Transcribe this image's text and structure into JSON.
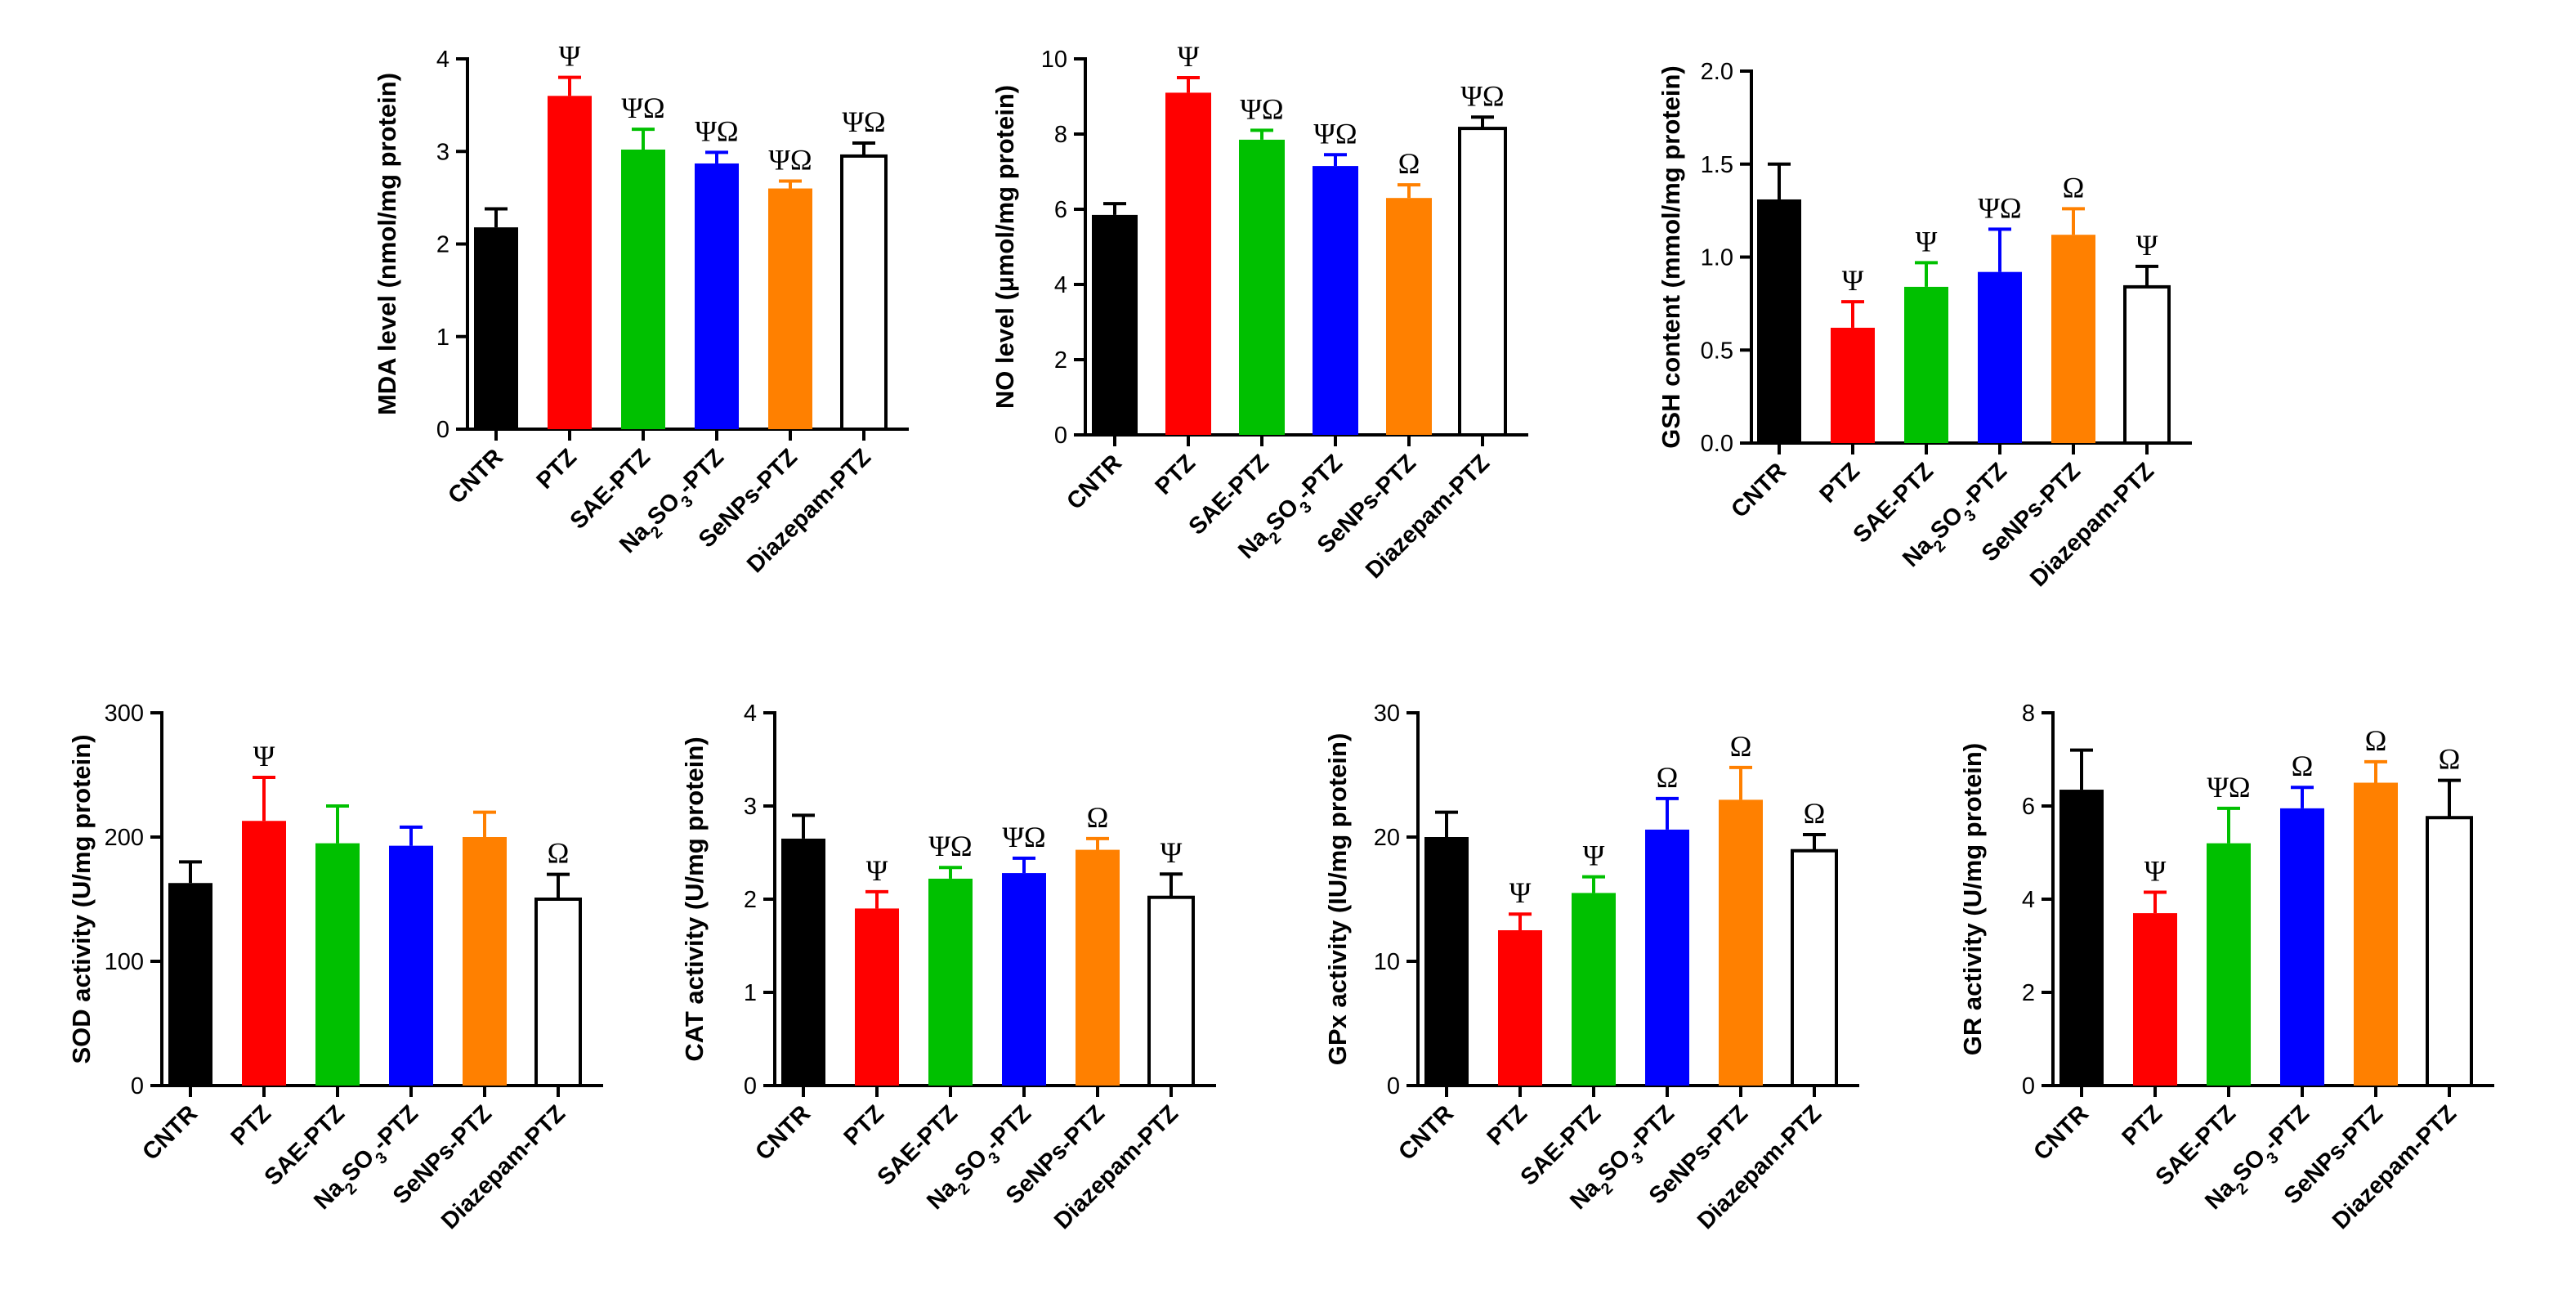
{
  "colors": {
    "CNTR": "#000000",
    "PTZ": "#ff0000",
    "SAE-PTZ": "#00c000",
    "Na2SO3-PTZ": "#0000ff",
    "SeNPs-PTZ": "#ff8000",
    "Diazepam-PTZ": "#ffffff"
  },
  "chart_data": [
    {
      "type": "bar",
      "categories": [
        "CNTR",
        "PTZ",
        "SAE-PTZ",
        "Na2SO3-PTZ",
        "SeNPs-PTZ",
        "Diazepam-PTZ"
      ],
      "category_labels": [
        {
          "text": "CNTR"
        },
        {
          "text": "PTZ"
        },
        {
          "text": "SAE-PTZ"
        },
        {
          "text": "Na",
          "sub": "2",
          "text2": "SO",
          "sub2": "3",
          "text3": "-PTZ"
        },
        {
          "text": "SeNPs-PTZ"
        },
        {
          "text": "Diazepam-PTZ"
        }
      ],
      "ylabel": "MDA level (nmol/mg protein)",
      "ylim": [
        0,
        4
      ],
      "yticks": [
        0,
        1,
        2,
        3,
        4
      ],
      "ytick_labels": [
        "0",
        "1",
        "2",
        "3",
        "4"
      ],
      "values": [
        2.18,
        3.6,
        3.02,
        2.87,
        2.6,
        2.95
      ],
      "errors": [
        0.2,
        0.2,
        0.22,
        0.12,
        0.08,
        0.14
      ],
      "significance": [
        "",
        "Ψ",
        "ΨΩ",
        "ΨΩ",
        "ΨΩ",
        "ΨΩ"
      ]
    },
    {
      "type": "bar",
      "categories": [
        "CNTR",
        "PTZ",
        "SAE-PTZ",
        "Na2SO3-PTZ",
        "SeNPs-PTZ",
        "Diazepam-PTZ"
      ],
      "category_labels": [
        {
          "text": "CNTR"
        },
        {
          "text": "PTZ"
        },
        {
          "text": "SAE-PTZ"
        },
        {
          "text": "Na",
          "sub": "2",
          "text2": "SO",
          "sub2": "3",
          "text3": "-PTZ"
        },
        {
          "text": "SeNPs-PTZ"
        },
        {
          "text": "Diazepam-PTZ"
        }
      ],
      "ylabel": "NO level (μmol/mg protein)",
      "ylim": [
        0,
        10
      ],
      "yticks": [
        0,
        2,
        4,
        6,
        8,
        10
      ],
      "ytick_labels": [
        "0",
        "2",
        "4",
        "6",
        "8",
        "10"
      ],
      "values": [
        5.85,
        9.1,
        7.85,
        7.15,
        6.3,
        8.15
      ],
      "errors": [
        0.3,
        0.4,
        0.25,
        0.3,
        0.35,
        0.3
      ],
      "significance": [
        "",
        "Ψ",
        "ΨΩ",
        "ΨΩ",
        "Ω",
        "ΨΩ"
      ]
    },
    {
      "type": "bar",
      "categories": [
        "CNTR",
        "PTZ",
        "SAE-PTZ",
        "Na2SO3-PTZ",
        "SeNPs-PTZ",
        "Diazepam-PTZ"
      ],
      "category_labels": [
        {
          "text": "CNTR"
        },
        {
          "text": "PTZ"
        },
        {
          "text": "SAE-PTZ"
        },
        {
          "text": "Na",
          "sub": "2",
          "text2": "SO",
          "sub2": "3",
          "text3": "-PTZ"
        },
        {
          "text": "SeNPs-PTZ"
        },
        {
          "text": "Diazepam-PTZ"
        }
      ],
      "ylabel": "GSH content (mmol/mg protein)",
      "ylim": [
        0,
        2
      ],
      "yticks": [
        0,
        0.5,
        1,
        1.5,
        2
      ],
      "ytick_labels": [
        "0.0",
        "0.5",
        "1.0",
        "1.5",
        "2.0"
      ],
      "values": [
        1.31,
        0.62,
        0.84,
        0.92,
        1.12,
        0.84
      ],
      "errors": [
        0.19,
        0.14,
        0.13,
        0.23,
        0.14,
        0.11
      ],
      "significance": [
        "",
        "Ψ",
        "Ψ",
        "ΨΩ",
        "Ω",
        "Ψ"
      ]
    },
    {
      "type": "bar",
      "categories": [
        "CNTR",
        "PTZ",
        "SAE-PTZ",
        "Na2SO3-PTZ",
        "SeNPs-PTZ",
        "Diazepam-PTZ"
      ],
      "category_labels": [
        {
          "text": "CNTR"
        },
        {
          "text": "PTZ"
        },
        {
          "text": "SAE-PTZ"
        },
        {
          "text": "Na",
          "sub": "2",
          "text2": "SO",
          "sub2": "3",
          "text3": "-PTZ"
        },
        {
          "text": "SeNPs-PTZ"
        },
        {
          "text": "Diazepam-PTZ"
        }
      ],
      "ylabel": "SOD activity (U/mg protein)",
      "ylim": [
        0,
        300
      ],
      "yticks": [
        0,
        100,
        200,
        300
      ],
      "ytick_labels": [
        "0",
        "100",
        "200",
        "300"
      ],
      "values": [
        163,
        213,
        195,
        193,
        200,
        150
      ],
      "errors": [
        17,
        35,
        30,
        15,
        20,
        20
      ],
      "significance": [
        "",
        "Ψ",
        "",
        "",
        "",
        "Ω"
      ]
    },
    {
      "type": "bar",
      "categories": [
        "CNTR",
        "PTZ",
        "SAE-PTZ",
        "Na2SO3-PTZ",
        "SeNPs-PTZ",
        "Diazepam-PTZ"
      ],
      "category_labels": [
        {
          "text": "CNTR"
        },
        {
          "text": "PTZ"
        },
        {
          "text": "SAE-PTZ"
        },
        {
          "text": "Na",
          "sub": "2",
          "text2": "SO",
          "sub2": "3",
          "text3": "-PTZ"
        },
        {
          "text": "SeNPs-PTZ"
        },
        {
          "text": "Diazepam-PTZ"
        }
      ],
      "ylabel": "CAT activity (U/mg protein)",
      "ylim": [
        0,
        4
      ],
      "yticks": [
        0,
        1,
        2,
        3,
        4
      ],
      "ytick_labels": [
        "0",
        "1",
        "2",
        "3",
        "4"
      ],
      "values": [
        2.65,
        1.9,
        2.22,
        2.28,
        2.53,
        2.02
      ],
      "errors": [
        0.25,
        0.18,
        0.12,
        0.16,
        0.12,
        0.25
      ],
      "significance": [
        "",
        "Ψ",
        "ΨΩ",
        "ΨΩ",
        "Ω",
        "Ψ"
      ]
    },
    {
      "type": "bar",
      "categories": [
        "CNTR",
        "PTZ",
        "SAE-PTZ",
        "Na2SO3-PTZ",
        "SeNPs-PTZ",
        "Diazepam-PTZ"
      ],
      "category_labels": [
        {
          "text": "CNTR"
        },
        {
          "text": "PTZ"
        },
        {
          "text": "SAE-PTZ"
        },
        {
          "text": "Na",
          "sub": "2",
          "text2": "SO",
          "sub2": "3",
          "text3": "-PTZ"
        },
        {
          "text": "SeNPs-PTZ"
        },
        {
          "text": "Diazepam-PTZ"
        }
      ],
      "ylabel": "GPx activity (IU/mg protein)",
      "ylim": [
        0,
        30
      ],
      "yticks": [
        0,
        10,
        20,
        30
      ],
      "ytick_labels": [
        "0",
        "10",
        "20",
        "30"
      ],
      "values": [
        20,
        12.5,
        15.5,
        20.6,
        23,
        18.9
      ],
      "errors": [
        2,
        1.3,
        1.3,
        2.5,
        2.6,
        1.3
      ],
      "significance": [
        "",
        "Ψ",
        "Ψ",
        "Ω",
        "Ω",
        "Ω"
      ]
    },
    {
      "type": "bar",
      "categories": [
        "CNTR",
        "PTZ",
        "SAE-PTZ",
        "Na2SO3-PTZ",
        "SeNPs-PTZ",
        "Diazepam-PTZ"
      ],
      "category_labels": [
        {
          "text": "CNTR"
        },
        {
          "text": "PTZ"
        },
        {
          "text": "SAE-PTZ"
        },
        {
          "text": "Na",
          "sub": "2",
          "text2": "SO",
          "sub2": "3",
          "text3": "-PTZ"
        },
        {
          "text": "SeNPs-PTZ"
        },
        {
          "text": "Diazepam-PTZ"
        }
      ],
      "ylabel": "GR activity (U/mg protein)",
      "ylim": [
        0,
        8
      ],
      "yticks": [
        0,
        2,
        4,
        6,
        8
      ],
      "ytick_labels": [
        "0",
        "2",
        "4",
        "6",
        "8"
      ],
      "values": [
        6.35,
        3.7,
        5.2,
        5.95,
        6.5,
        5.75
      ],
      "errors": [
        0.85,
        0.45,
        0.75,
        0.45,
        0.45,
        0.8
      ],
      "significance": [
        "",
        "Ψ",
        "ΨΩ",
        "Ω",
        "Ω",
        "Ω"
      ]
    }
  ]
}
